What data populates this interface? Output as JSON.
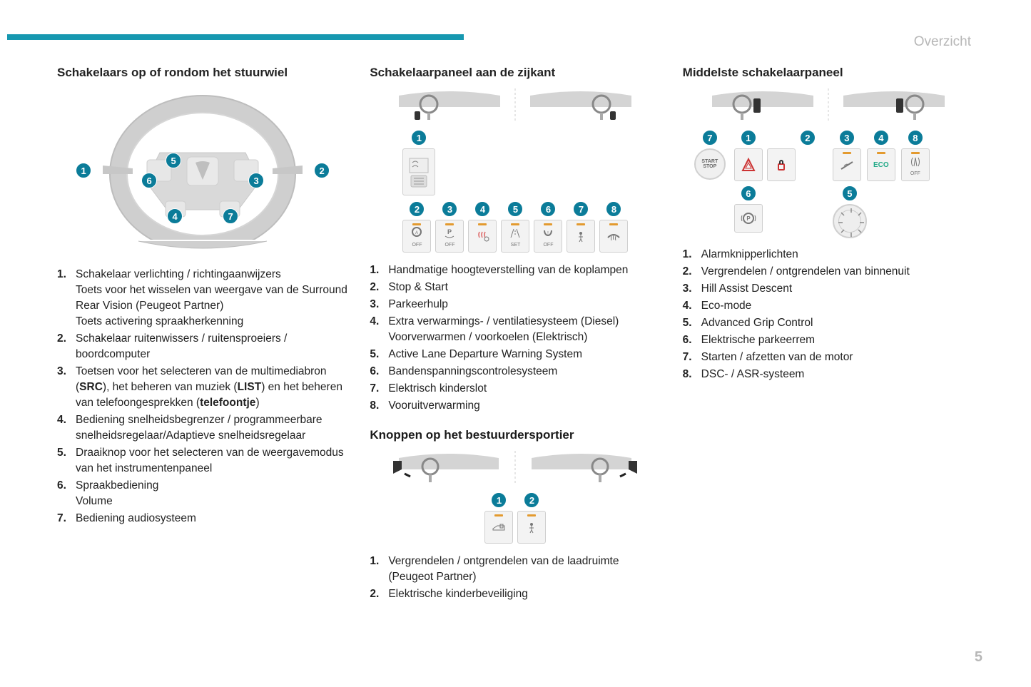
{
  "header": {
    "accent_color": "#1698b0",
    "page_label": "Overzicht",
    "page_number": "5"
  },
  "badge_color": "#0b7c99",
  "badge_text_color": "#ffffff",
  "switch_led_color": "#e39a2f",
  "col1": {
    "title": "Schakelaars op of rondom het stuurwiel",
    "badges": [
      "1",
      "2",
      "3",
      "4",
      "5",
      "6",
      "7"
    ],
    "items": [
      {
        "n": "1.",
        "t": "Schakelaar verlichting / richtingaanwijzers<br>Toets voor het wisselen van weergave van de Surround Rear Vision (Peugeot Partner)<br>Toets activering spraakherkenning"
      },
      {
        "n": "2.",
        "t": "Schakelaar ruitenwissers / ruitensproeiers / boordcomputer"
      },
      {
        "n": "3.",
        "t": "Toetsen voor het selecteren van de multimediabron (<b>SRC</b>), het beheren van muziek (<b>LIST</b>) en het beheren van telefoongesprekken (<b>telefoontje</b>)"
      },
      {
        "n": "4.",
        "t": "Bediening snelheidsbegrenzer / programmeerbare snelheidsregelaar/Adaptieve snelheidsregelaar"
      },
      {
        "n": "5.",
        "t": "Draaiknop voor het selecteren van de weergavemodus van het instrumentenpaneel"
      },
      {
        "n": "6.",
        "t": "Spraakbediening<br>Volume"
      },
      {
        "n": "7.",
        "t": "Bediening audiosysteem"
      }
    ]
  },
  "col2": {
    "sectionA": {
      "title": "Schakelaarpaneel aan de zijkant",
      "badges": [
        "1",
        "2",
        "3",
        "4",
        "5",
        "6",
        "7",
        "8"
      ],
      "switch_labels": {
        "1": "",
        "2": "OFF",
        "3": "OFF",
        "4": "",
        "5": "SET",
        "6": "OFF",
        "7": "",
        "8": ""
      },
      "items": [
        {
          "n": "1.",
          "t": "Handmatige hoogteverstelling van de koplampen"
        },
        {
          "n": "2.",
          "t": "Stop & Start"
        },
        {
          "n": "3.",
          "t": "Parkeerhulp"
        },
        {
          "n": "4.",
          "t": "Extra verwarmings- / ventilatiesysteem (Diesel)<br>Voorverwarmen / voorkoelen (Elektrisch)"
        },
        {
          "n": "5.",
          "t": "Active Lane Departure Warning System"
        },
        {
          "n": "6.",
          "t": "Bandenspanningscontrolesysteem"
        },
        {
          "n": "7.",
          "t": "Elektrisch kinderslot"
        },
        {
          "n": "8.",
          "t": "Vooruitverwarming"
        }
      ]
    },
    "sectionB": {
      "title": "Knoppen op het bestuurdersportier",
      "badges": [
        "1",
        "2"
      ],
      "items": [
        {
          "n": "1.",
          "t": "Vergrendelen / ontgrendelen van de laadruimte (Peugeot Partner)"
        },
        {
          "n": "2.",
          "t": "Elektrische kinderbeveiliging"
        }
      ]
    }
  },
  "col3": {
    "title": "Middelste schakelaarpaneel",
    "badges": [
      "1",
      "2",
      "3",
      "4",
      "5",
      "6",
      "7",
      "8"
    ],
    "switch_labels": {
      "4": "ECO",
      "7": "START\nSTOP",
      "8_sub": "OFF"
    },
    "items": [
      {
        "n": "1.",
        "t": "Alarmknipperlichten"
      },
      {
        "n": "2.",
        "t": "Vergrendelen / ontgrendelen van binnenuit"
      },
      {
        "n": "3.",
        "t": "Hill Assist Descent"
      },
      {
        "n": "4.",
        "t": "Eco-mode"
      },
      {
        "n": "5.",
        "t": "Advanced Grip Control"
      },
      {
        "n": "6.",
        "t": "Elektrische parkeerrem"
      },
      {
        "n": "7.",
        "t": "Starten / afzetten van de motor"
      },
      {
        "n": "8.",
        "t": "DSC- / ASR-systeem"
      }
    ]
  }
}
